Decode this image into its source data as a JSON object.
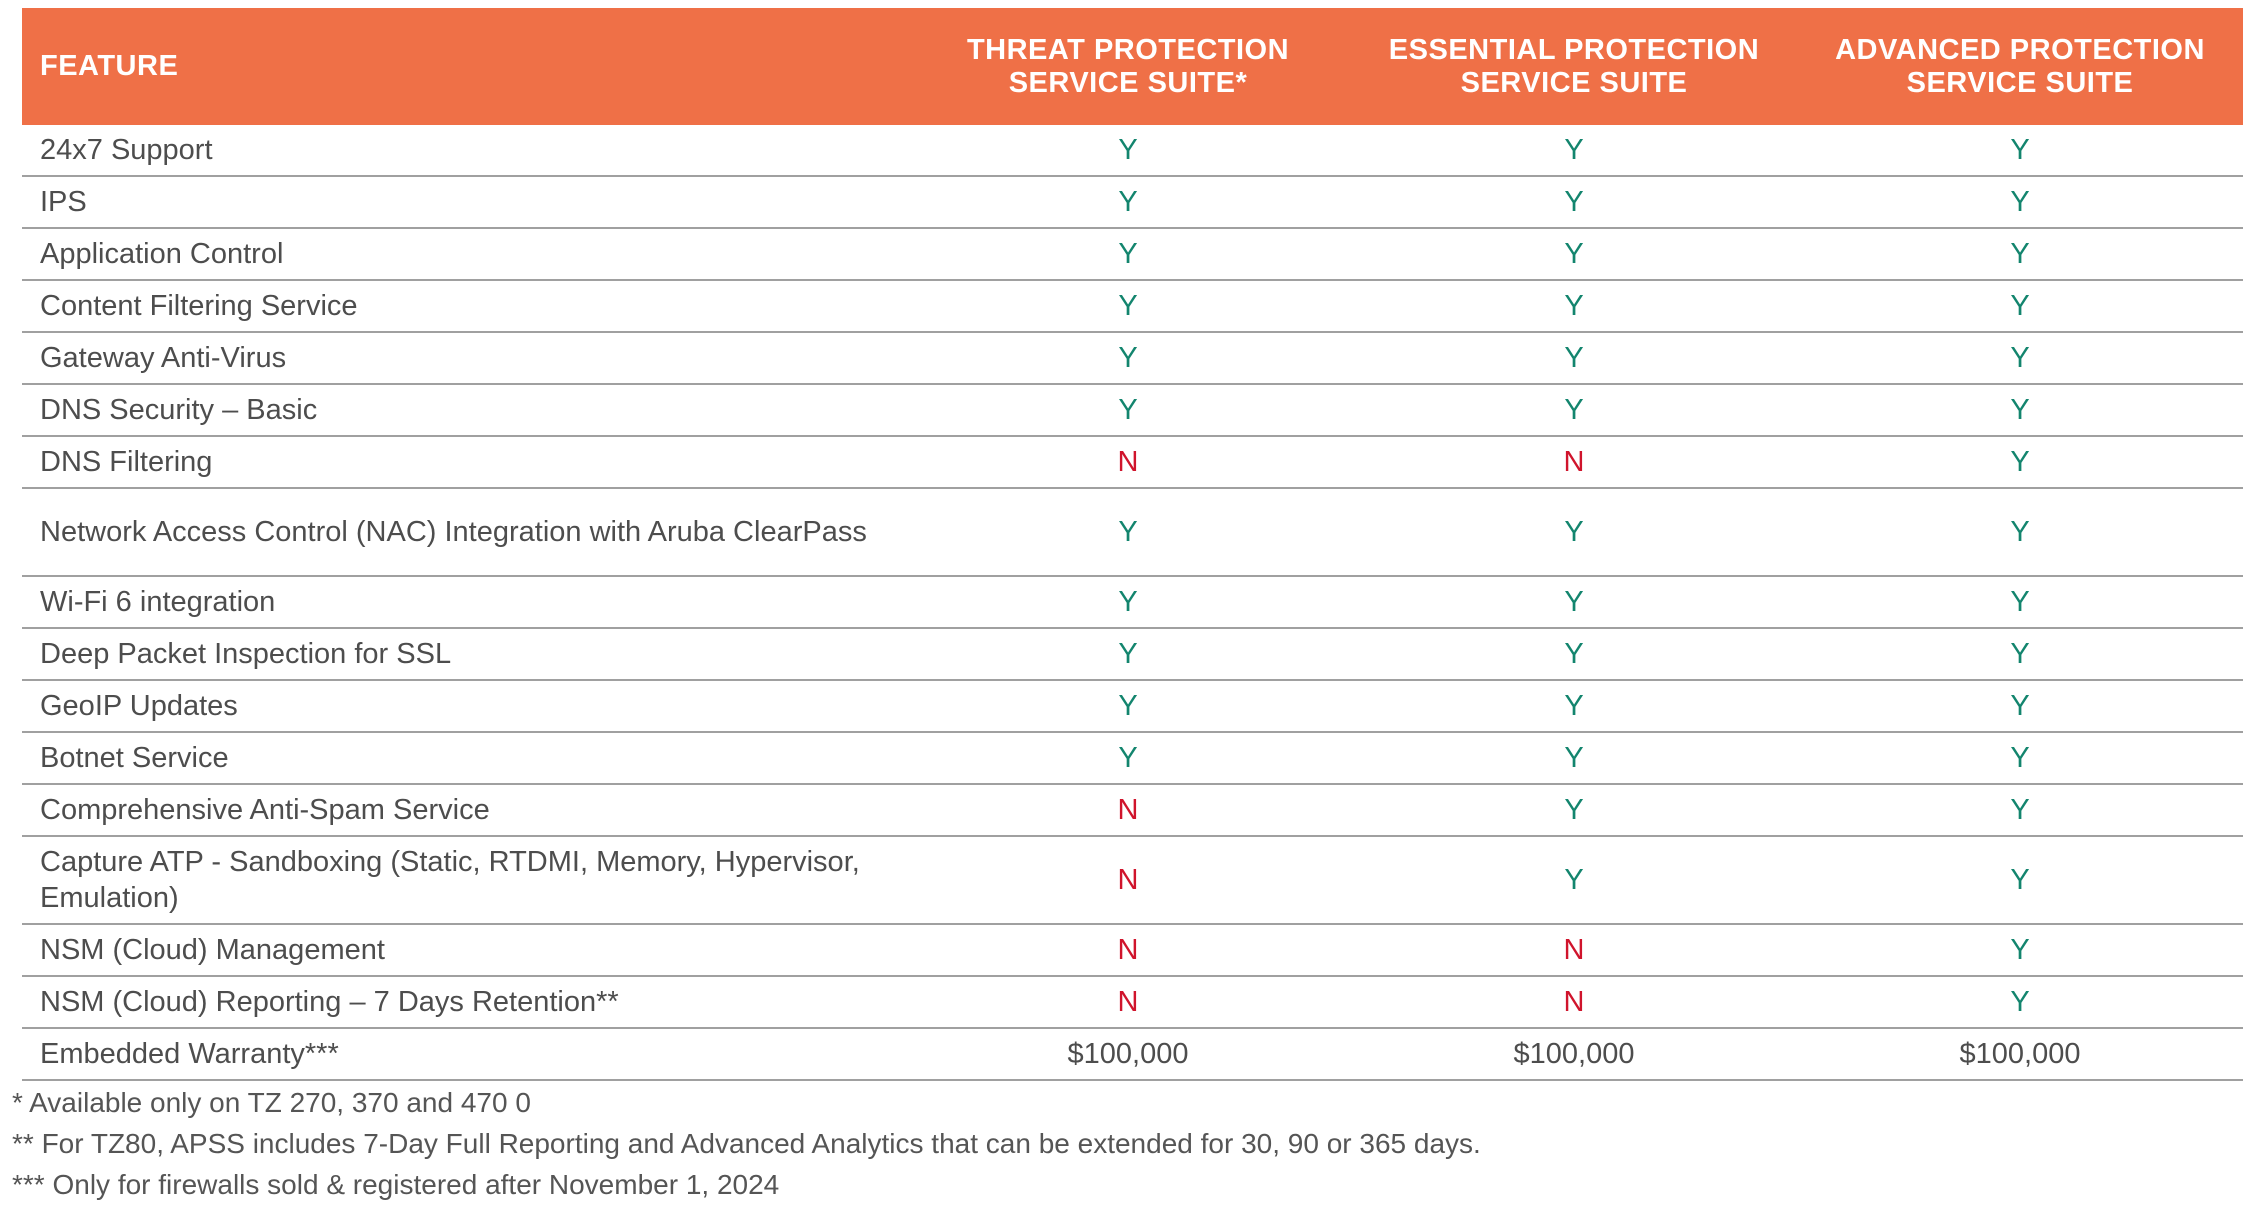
{
  "colors": {
    "header_bg": "#ef7047",
    "yes": "#13856e",
    "no": "#d0142c"
  },
  "header": {
    "feature": "FEATURE",
    "suites": [
      "THREAT PROTECTION SERVICE SUITE*",
      "ESSENTIAL PROTECTION SERVICE SUITE",
      "ADVANCED PROTECTION SERVICE SUITE"
    ]
  },
  "rows": [
    {
      "feature": "24x7 Support",
      "values": [
        "Y",
        "Y",
        "Y"
      ]
    },
    {
      "feature": "IPS",
      "values": [
        "Y",
        "Y",
        "Y"
      ]
    },
    {
      "feature": "Application Control",
      "values": [
        "Y",
        "Y",
        "Y"
      ]
    },
    {
      "feature": "Content Filtering Service",
      "values": [
        "Y",
        "Y",
        "Y"
      ]
    },
    {
      "feature": "Gateway Anti-Virus",
      "values": [
        "Y",
        "Y",
        "Y"
      ]
    },
    {
      "feature": "DNS Security – Basic",
      "values": [
        "Y",
        "Y",
        "Y"
      ]
    },
    {
      "feature": "DNS Filtering",
      "values": [
        "N",
        "N",
        "Y"
      ]
    },
    {
      "feature": "Network Access Control (NAC) Integration with Aruba ClearPass",
      "values": [
        "Y",
        "Y",
        "Y"
      ]
    },
    {
      "feature": "Wi-Fi 6 integration",
      "values": [
        "Y",
        "Y",
        "Y"
      ]
    },
    {
      "feature": "Deep Packet Inspection for SSL",
      "values": [
        "Y",
        "Y",
        "Y"
      ]
    },
    {
      "feature": "GeoIP Updates",
      "values": [
        "Y",
        "Y",
        "Y"
      ]
    },
    {
      "feature": "Botnet Service",
      "values": [
        "Y",
        "Y",
        "Y"
      ]
    },
    {
      "feature": "Comprehensive Anti-Spam Service",
      "values": [
        "N",
        "Y",
        "Y"
      ]
    },
    {
      "feature": "Capture ATP -  Sandboxing (Static, RTDMI, Memory, Hypervisor, Emulation)",
      "values": [
        "N",
        "Y",
        "Y"
      ]
    },
    {
      "feature": "NSM (Cloud) Management",
      "values": [
        "N",
        "N",
        "Y"
      ]
    },
    {
      "feature": "NSM (Cloud) Reporting – 7 Days Retention**",
      "values": [
        "N",
        "N",
        "Y"
      ]
    },
    {
      "feature": "Embedded Warranty***",
      "values": [
        "$100,000",
        "$100,000",
        "$100,000"
      ]
    }
  ],
  "footnotes": [
    "* Available only on TZ 270, 370 and 470 0",
    "** For TZ80, APSS includes 7-Day Full Reporting and Advanced Analytics that can be extended for 30, 90 or 365 days.",
    "*** Only for firewalls sold & registered after November 1, 2024"
  ]
}
